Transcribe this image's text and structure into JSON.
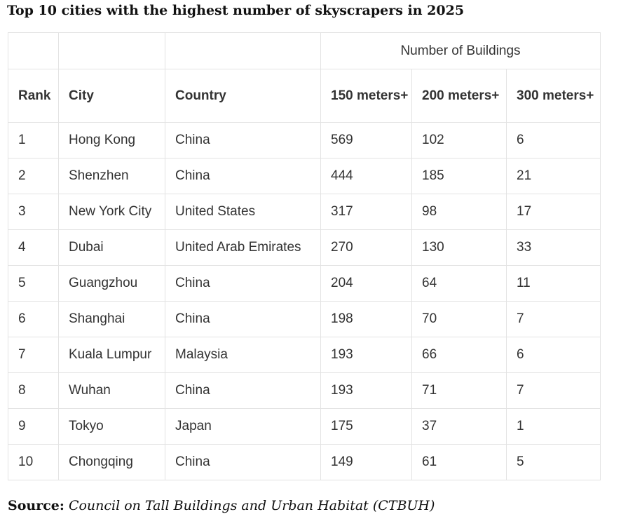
{
  "title": "Top 10 cities with the highest number of skyscrapers in 2025",
  "table": {
    "group_header": "Number of Buildings",
    "headers": {
      "rank": "Rank",
      "city": "City",
      "country": "Country",
      "b150": "150 meters+",
      "b200": "200 meters+",
      "b300": "300 meters+"
    },
    "rows": [
      {
        "rank": "1",
        "city": "Hong Kong",
        "country": "China",
        "b150": "569",
        "b200": "102",
        "b300": "6"
      },
      {
        "rank": "2",
        "city": "Shenzhen",
        "country": "China",
        "b150": "444",
        "b200": "185",
        "b300": "21"
      },
      {
        "rank": "3",
        "city": "New York City",
        "country": "United States",
        "b150": "317",
        "b200": "98",
        "b300": "17"
      },
      {
        "rank": "4",
        "city": "Dubai",
        "country": "United Arab Emirates",
        "b150": "270",
        "b200": "130",
        "b300": "33"
      },
      {
        "rank": "5",
        "city": "Guangzhou",
        "country": "China",
        "b150": "204",
        "b200": "64",
        "b300": "11"
      },
      {
        "rank": "6",
        "city": "Shanghai",
        "country": "China",
        "b150": "198",
        "b200": "70",
        "b300": "7"
      },
      {
        "rank": "7",
        "city": "Kuala Lumpur",
        "country": "Malaysia",
        "b150": "193",
        "b200": "66",
        "b300": "6"
      },
      {
        "rank": "8",
        "city": "Wuhan",
        "country": "China",
        "b150": "193",
        "b200": "71",
        "b300": "7"
      },
      {
        "rank": "9",
        "city": "Tokyo",
        "country": "Japan",
        "b150": "175",
        "b200": "37",
        "b300": "1"
      },
      {
        "rank": "10",
        "city": "Chongqing",
        "country": "China",
        "b150": "149",
        "b200": "61",
        "b300": "5"
      }
    ]
  },
  "source": {
    "label": "Source:",
    "text": "Council on Tall Buildings and Urban Habitat (CTBUH)"
  }
}
